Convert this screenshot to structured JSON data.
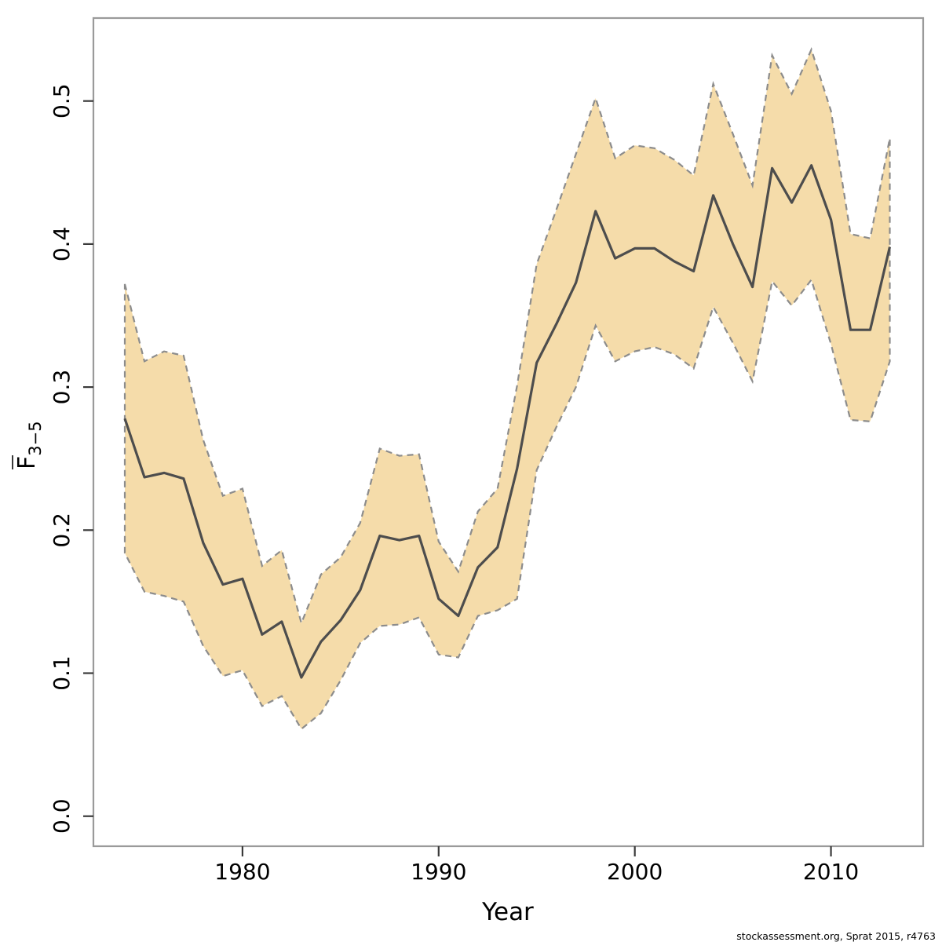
{
  "page": {
    "background": "#ffffff"
  },
  "footer": {
    "attribution": "stockassessment.org, Sprat 2015, r4763"
  },
  "chart_data": {
    "type": "line",
    "title": "",
    "xlabel": "Year",
    "ylabel": {
      "main": "F",
      "overline": true,
      "subscript": "3−5"
    },
    "legend": "none",
    "grid": false,
    "xlim": [
      1972.4,
      2014.7
    ],
    "ylim": [
      -0.021,
      0.558
    ],
    "x_ticks": [
      1980,
      1990,
      2000,
      2010
    ],
    "y_tick_labels": [
      "0.0",
      "0.1",
      "0.2",
      "0.3",
      "0.4",
      "0.5"
    ],
    "band_fill": "#f5dcaa",
    "band_edge_color": "#8c8c8c",
    "band_edge_style": "dashed",
    "line_color": "#4d4d4d",
    "box_color": "#9a9a9a",
    "tick_color": "#3a3a3a",
    "years": [
      1974,
      1975,
      1976,
      1977,
      1978,
      1979,
      1980,
      1981,
      1982,
      1983,
      1984,
      1985,
      1986,
      1987,
      1988,
      1989,
      1990,
      1991,
      1992,
      1993,
      1994,
      1995,
      1996,
      1997,
      1998,
      1999,
      2000,
      2001,
      2002,
      2003,
      2004,
      2005,
      2006,
      2007,
      2008,
      2009,
      2010,
      2011,
      2012,
      2013
    ],
    "series": [
      {
        "name": "mean_F_3-5",
        "values": [
          0.278,
          0.237,
          0.24,
          0.236,
          0.191,
          0.162,
          0.166,
          0.127,
          0.136,
          0.097,
          0.122,
          0.137,
          0.158,
          0.196,
          0.193,
          0.196,
          0.152,
          0.14,
          0.174,
          0.188,
          0.243,
          0.317,
          0.344,
          0.373,
          0.423,
          0.39,
          0.397,
          0.397,
          0.388,
          0.381,
          0.434,
          0.4,
          0.37,
          0.453,
          0.429,
          0.455,
          0.417,
          0.34,
          0.34,
          0.398
        ]
      },
      {
        "name": "ci_lower",
        "values": [
          0.184,
          0.157,
          0.154,
          0.15,
          0.119,
          0.098,
          0.102,
          0.077,
          0.084,
          0.061,
          0.072,
          0.095,
          0.121,
          0.133,
          0.134,
          0.139,
          0.113,
          0.111,
          0.14,
          0.144,
          0.152,
          0.242,
          0.272,
          0.3,
          0.343,
          0.318,
          0.325,
          0.328,
          0.323,
          0.313,
          0.356,
          0.331,
          0.304,
          0.374,
          0.357,
          0.375,
          0.33,
          0.277,
          0.276,
          0.318
        ]
      },
      {
        "name": "ci_upper",
        "values": [
          0.372,
          0.318,
          0.325,
          0.322,
          0.263,
          0.224,
          0.229,
          0.175,
          0.186,
          0.135,
          0.169,
          0.181,
          0.205,
          0.257,
          0.252,
          0.253,
          0.192,
          0.171,
          0.213,
          0.229,
          0.301,
          0.386,
          0.424,
          0.463,
          0.502,
          0.46,
          0.469,
          0.467,
          0.459,
          0.448,
          0.512,
          0.477,
          0.441,
          0.532,
          0.505,
          0.536,
          0.493,
          0.407,
          0.404,
          0.474
        ]
      }
    ]
  }
}
